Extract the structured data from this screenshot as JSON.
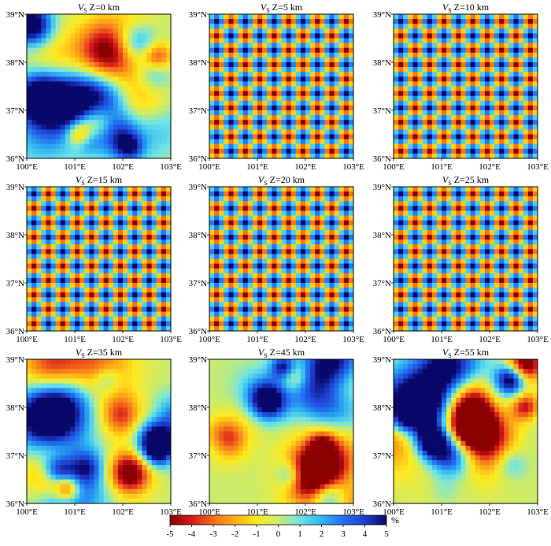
{
  "figure": {
    "colorbar": {
      "min": -5,
      "max": 5,
      "ticks": [
        "-5",
        "-4",
        "-3",
        "-2",
        "-1",
        "0",
        "1",
        "2",
        "3",
        "4",
        "5"
      ],
      "unit": "%",
      "colors": [
        "#8b0000",
        "#d7191c",
        "#f46d1c",
        "#fdae17",
        "#ffea1e",
        "#cbeb6a",
        "#6ee3e8",
        "#2fb5f0",
        "#2171f0",
        "#1f3fd0",
        "#08086b"
      ]
    },
    "x_ticks": [
      "100°E",
      "101°E",
      "102°E",
      "103°E"
    ],
    "y_ticks": [
      "36°N",
      "37°N",
      "38°N",
      "39°N"
    ]
  },
  "chart_data": [
    {
      "type": "heatmap",
      "title": "V S Z=0 km",
      "title_var": "V",
      "title_sub": "S",
      "title_rest": " Z=0 km",
      "pattern": "random",
      "seed": 11,
      "xlim": [
        100,
        103
      ],
      "ylim": [
        36,
        39
      ],
      "xlabel": "",
      "ylabel": ""
    },
    {
      "type": "heatmap",
      "title": "V S Z=5 km",
      "title_var": "V",
      "title_sub": "S",
      "title_rest": " Z=5 km",
      "pattern": "checkerboard",
      "seed": 0,
      "xlim": [
        100,
        103
      ],
      "ylim": [
        36,
        39
      ],
      "xlabel": "",
      "ylabel": ""
    },
    {
      "type": "heatmap",
      "title": "V S Z=10 km",
      "title_var": "V",
      "title_sub": "S",
      "title_rest": " Z=10 km",
      "pattern": "checkerboard",
      "seed": 0,
      "xlim": [
        100,
        103
      ],
      "ylim": [
        36,
        39
      ],
      "xlabel": "",
      "ylabel": ""
    },
    {
      "type": "heatmap",
      "title": "V S Z=15 km",
      "title_var": "V",
      "title_sub": "S",
      "title_rest": " Z=15 km",
      "pattern": "checkerboard",
      "seed": 0,
      "xlim": [
        100,
        103
      ],
      "ylim": [
        36,
        39
      ],
      "xlabel": "",
      "ylabel": ""
    },
    {
      "type": "heatmap",
      "title": "V S Z=20 km",
      "title_var": "V",
      "title_sub": "S",
      "title_rest": " Z=20 km",
      "pattern": "checkerboard",
      "seed": 0,
      "xlim": [
        100,
        103
      ],
      "ylim": [
        36,
        39
      ],
      "xlabel": "",
      "ylabel": ""
    },
    {
      "type": "heatmap",
      "title": "V S Z=25 km",
      "title_var": "V",
      "title_sub": "S",
      "title_rest": " Z=25 km",
      "pattern": "checkerboard",
      "seed": 0,
      "xlim": [
        100,
        103
      ],
      "ylim": [
        36,
        39
      ],
      "xlabel": "",
      "ylabel": ""
    },
    {
      "type": "heatmap",
      "title": "V S Z=35 km",
      "title_var": "V",
      "title_sub": "S",
      "title_rest": " Z=35 km",
      "pattern": "random",
      "seed": 35,
      "xlim": [
        100,
        103
      ],
      "ylim": [
        36,
        39
      ],
      "xlabel": "",
      "ylabel": ""
    },
    {
      "type": "heatmap",
      "title": "V S Z=45 km",
      "title_var": "V",
      "title_sub": "S",
      "title_rest": " Z=45 km",
      "pattern": "random",
      "seed": 45,
      "xlim": [
        100,
        103
      ],
      "ylim": [
        36,
        39
      ],
      "xlabel": "",
      "ylabel": ""
    },
    {
      "type": "heatmap",
      "title": "V S Z=55 km",
      "title_var": "V",
      "title_sub": "S",
      "title_rest": " Z=55 km",
      "pattern": "random",
      "seed": 55,
      "xlim": [
        100,
        103
      ],
      "ylim": [
        36,
        39
      ],
      "xlabel": "",
      "ylabel": ""
    }
  ]
}
